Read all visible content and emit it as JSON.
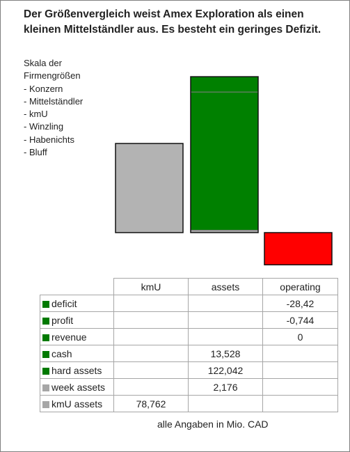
{
  "headline": "Der Größenvergleich weist Amex Exploration  als einen kleinen Mittelständler aus. Es besteht ein geringes Defizit.",
  "scale": {
    "title_lines": [
      "Skala der",
      "Firmengrößen"
    ],
    "items": [
      "- Konzern",
      "- Mittelständler",
      "- kmU",
      "- Winzling",
      "- Habenichts",
      "- Bluff"
    ]
  },
  "chart_data": {
    "type": "bar",
    "categories": [
      "kmU",
      "assets",
      "operating"
    ],
    "series": [
      {
        "key": "kmu_assets",
        "stack": "kmU",
        "values": [
          78.762,
          0,
          0
        ],
        "color": "#b3b3b3"
      },
      {
        "key": "week_assets",
        "stack": "assets",
        "values": [
          0,
          2.176,
          0
        ],
        "color": "#a6a6a6"
      },
      {
        "key": "hard_assets",
        "stack": "assets",
        "values": [
          0,
          122.042,
          0
        ],
        "color": "#008000"
      },
      {
        "key": "cash",
        "stack": "assets",
        "values": [
          0,
          13.528,
          0
        ],
        "color": "#008000"
      },
      {
        "key": "deficit",
        "stack": "operating",
        "values": [
          0,
          0,
          -28.42
        ],
        "color": "#ff0000"
      }
    ]
  },
  "table": {
    "headers": [
      "",
      "kmU",
      "assets",
      "operating"
    ],
    "rows": [
      {
        "label": "deficit",
        "swatch": "#007a00",
        "values": [
          "",
          "",
          "-28,42"
        ]
      },
      {
        "label": "profit",
        "swatch": "#007a00",
        "values": [
          "",
          "",
          "-0,744"
        ]
      },
      {
        "label": "revenue",
        "swatch": "#007a00",
        "values": [
          "",
          "",
          "0"
        ]
      },
      {
        "label": "cash",
        "swatch": "#007a00",
        "values": [
          "",
          "13,528",
          ""
        ]
      },
      {
        "label": "hard assets",
        "swatch": "#007a00",
        "values": [
          "",
          "122,042",
          ""
        ]
      },
      {
        "label": "week assets",
        "swatch": "#a6a6a6",
        "values": [
          "",
          "2,176",
          ""
        ]
      },
      {
        "label": "kmU assets",
        "swatch": "#a6a6a6",
        "values": [
          "78,762",
          "",
          ""
        ]
      }
    ]
  },
  "footnote": "alle Angaben in Mio. CAD"
}
